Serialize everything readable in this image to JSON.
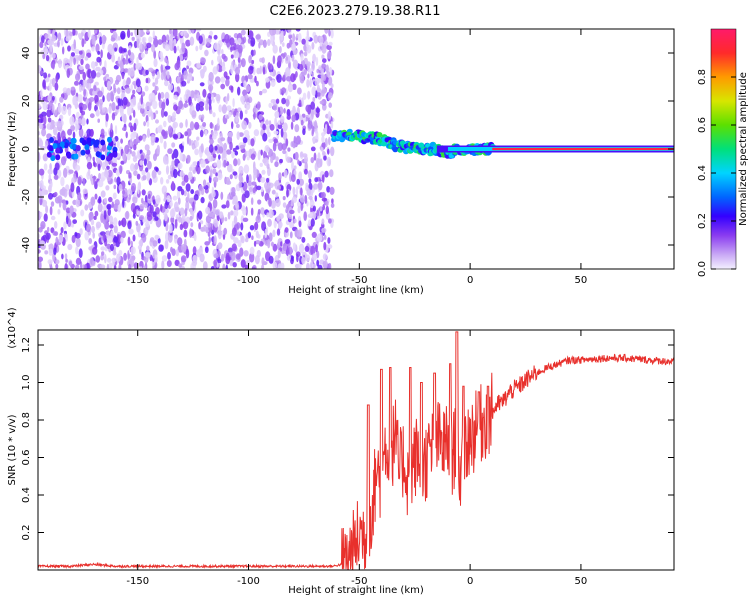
{
  "figure_title": "C2E6.2023.279.19.38.R11",
  "colors": {
    "snr_line": "#e8302c",
    "axis": "#000000",
    "spectrum_sparse": "#c9a8f5",
    "spectrum_dense": "#6a12e0",
    "spectrum_peak": "#e8204a",
    "spectrum_mid": "#22d4b8"
  },
  "chart_data": [
    {
      "type": "heatmap",
      "xlabel": "Height of straight line (km)",
      "ylabel": "Frequency (Hz)",
      "xlim": [
        -195,
        92
      ],
      "ylim": [
        -50,
        50
      ],
      "x_ticks": [
        -150,
        -100,
        -50,
        0,
        50
      ],
      "y_ticks": [
        -40,
        -20,
        0,
        20,
        40
      ],
      "x_tick_labels": [
        "-150",
        "-100",
        "-50",
        "0",
        "50"
      ],
      "y_tick_labels": [
        "-40",
        "-20",
        "0",
        "20",
        "40"
      ],
      "colorbar": {
        "label": "Normalized spectral amplitude",
        "range": [
          0,
          1
        ],
        "ticks": [
          0.0,
          0.2,
          0.4,
          0.6,
          0.8
        ],
        "tick_labels": [
          "0.0",
          "0.2",
          "0.4",
          "0.6",
          "0.8"
        ],
        "colormap": [
          "#f4f0ff",
          "#c9a8f5",
          "#8a3cf0",
          "#3300ff",
          "#0066ff",
          "#00d4ff",
          "#00e07a",
          "#5ce000",
          "#d8e600",
          "#ff9a00",
          "#ff2a2a",
          "#ff1a6a"
        ]
      },
      "features": {
        "noise_region_x": [
          -195,
          -62
        ],
        "wandering_echo": [
          [
            -62,
            5
          ],
          [
            -55,
            6
          ],
          [
            -50,
            5
          ],
          [
            -45,
            5
          ],
          [
            -40,
            4
          ],
          [
            -35,
            2
          ],
          [
            -30,
            1
          ],
          [
            -25,
            0
          ],
          [
            -20,
            0
          ],
          [
            -15,
            0
          ],
          [
            -10,
            -2
          ],
          [
            -5,
            0
          ],
          [
            0,
            0
          ],
          [
            5,
            0
          ],
          [
            10,
            0
          ]
        ],
        "steady_line": {
          "x_start": 10,
          "x_end": 92,
          "frequency": 0,
          "amplitude": 0.95
        },
        "low_cluster": {
          "x": [
            -190,
            -160
          ],
          "frequency": 0
        }
      }
    },
    {
      "type": "line",
      "xlabel": "Height of straight line (km)",
      "ylabel": "SNR (10 * v/v)",
      "y_multiplier": "(x10^4)",
      "xlim": [
        -195,
        92
      ],
      "ylim": [
        0,
        1.28
      ],
      "x_ticks": [
        -150,
        -100,
        -50,
        0,
        50
      ],
      "y_ticks": [
        0.2,
        0.4,
        0.6,
        0.8,
        1.0,
        1.2
      ],
      "x_tick_labels": [
        "-150",
        "-100",
        "-50",
        "0",
        "50"
      ],
      "y_tick_labels": [
        "0.2",
        "0.4",
        "0.6",
        "0.8",
        "1.0",
        "1.2"
      ],
      "series": [
        {
          "color": "#e8302c",
          "points": [
            [
              -195,
              0.02
            ],
            [
              -180,
              0.02
            ],
            [
              -170,
              0.03
            ],
            [
              -160,
              0.02
            ],
            [
              -150,
              0.02
            ],
            [
              -140,
              0.02
            ],
            [
              -120,
              0.02
            ],
            [
              -100,
              0.02
            ],
            [
              -80,
              0.02
            ],
            [
              -70,
              0.02
            ],
            [
              -62,
              0.02
            ],
            [
              -58,
              0.03
            ],
            [
              -55,
              0.06
            ],
            [
              -52,
              0.12
            ],
            [
              -50,
              0.2
            ],
            [
              -47,
              0.18
            ],
            [
              -44,
              0.35
            ],
            [
              -42,
              0.55
            ],
            [
              -40,
              0.45
            ],
            [
              -38,
              0.7
            ],
            [
              -36,
              0.55
            ],
            [
              -34,
              0.75
            ],
            [
              -32,
              0.52
            ],
            [
              -30,
              0.6
            ],
            [
              -28,
              0.48
            ],
            [
              -26,
              0.55
            ],
            [
              -24,
              0.62
            ],
            [
              -22,
              0.5
            ],
            [
              -20,
              0.58
            ],
            [
              -18,
              0.62
            ],
            [
              -15,
              0.7
            ],
            [
              -12,
              0.66
            ],
            [
              -10,
              0.68
            ],
            [
              -8,
              0.6
            ],
            [
              -6,
              0.72
            ],
            [
              -4,
              0.45
            ],
            [
              -2,
              0.66
            ],
            [
              0,
              0.72
            ],
            [
              3,
              0.74
            ],
            [
              6,
              0.8
            ],
            [
              9,
              0.82
            ],
            [
              12,
              0.88
            ],
            [
              15,
              0.9
            ],
            [
              18,
              0.95
            ],
            [
              22,
              0.98
            ],
            [
              26,
              1.02
            ],
            [
              30,
              1.05
            ],
            [
              35,
              1.08
            ],
            [
              40,
              1.1
            ],
            [
              45,
              1.12
            ],
            [
              50,
              1.12
            ],
            [
              60,
              1.13
            ],
            [
              70,
              1.13
            ],
            [
              80,
              1.12
            ],
            [
              92,
              1.11
            ]
          ],
          "spikes": [
            [
              -46,
              0.88
            ],
            [
              -40,
              1.07
            ],
            [
              -36,
              1.08
            ],
            [
              -27,
              1.08
            ],
            [
              -22,
              1.0
            ],
            [
              -16,
              1.05
            ],
            [
              -9,
              1.1
            ],
            [
              -6,
              1.27
            ],
            [
              -3,
              0.98
            ],
            [
              4,
              0.95
            ],
            [
              8,
              0.98
            ]
          ]
        }
      ]
    }
  ]
}
